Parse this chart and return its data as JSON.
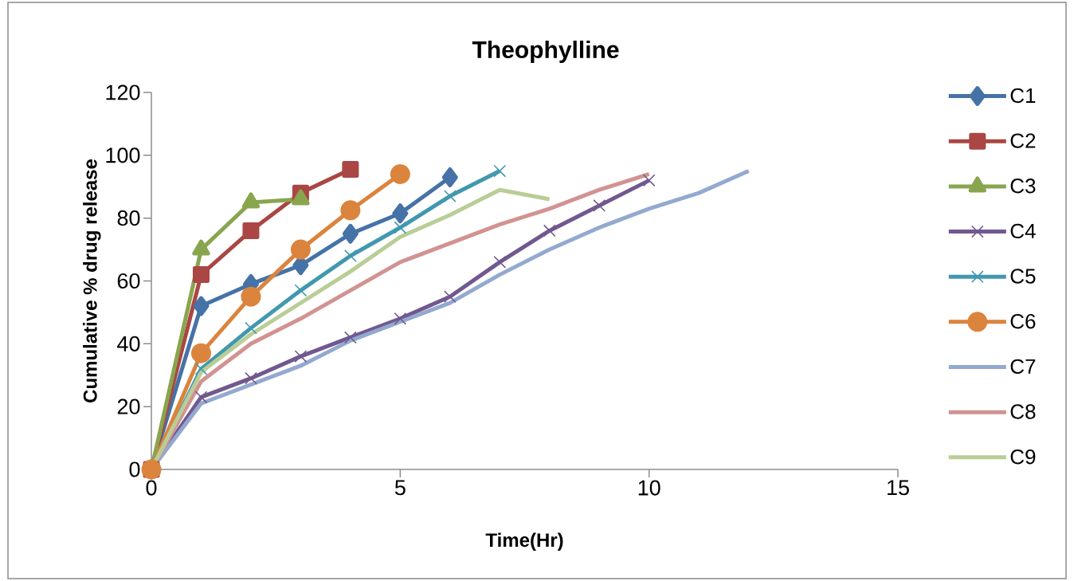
{
  "chart_data": {
    "type": "line",
    "title": "Theophylline",
    "xlabel": "Time(Hr)",
    "ylabel": "Cumulative % drug release",
    "xlim": [
      0,
      15
    ],
    "xticks": [
      0,
      5,
      10,
      15
    ],
    "ylim": [
      0,
      120
    ],
    "yticks": [
      0,
      20,
      40,
      60,
      80,
      100,
      120
    ],
    "grid": false,
    "legend": "right",
    "line_style": "solid",
    "series": [
      {
        "name": "C1",
        "color": "#4572a7",
        "marker": "diamond",
        "x": [
          0,
          1,
          2,
          3,
          4,
          5,
          6
        ],
        "values": [
          0,
          52,
          59,
          65,
          75,
          81.5,
          93
        ]
      },
      {
        "name": "C2",
        "color": "#aa4643",
        "marker": "square",
        "x": [
          0,
          1,
          2,
          3,
          4
        ],
        "values": [
          0,
          62,
          76,
          88,
          95.5
        ]
      },
      {
        "name": "C3",
        "color": "#89a54e",
        "marker": "triangle",
        "x": [
          0,
          1,
          2,
          3
        ],
        "values": [
          0,
          70,
          85,
          86
        ]
      },
      {
        "name": "C4",
        "color": "#71588f",
        "marker": "cross",
        "x": [
          0,
          1,
          2,
          3,
          4,
          5,
          6,
          7,
          8,
          9,
          10
        ],
        "values": [
          0,
          23,
          29,
          36,
          42,
          48,
          55,
          66,
          76,
          84,
          92
        ]
      },
      {
        "name": "C5",
        "color": "#4198af",
        "marker": "cross",
        "x": [
          0,
          1,
          2,
          3,
          4,
          5,
          6,
          7
        ],
        "values": [
          0,
          32,
          45,
          57,
          68,
          77,
          87,
          95
        ]
      },
      {
        "name": "C6",
        "color": "#db843d",
        "marker": "circle",
        "x": [
          0,
          1,
          2,
          3,
          4,
          5
        ],
        "values": [
          0,
          37,
          55,
          70,
          82.5,
          94
        ]
      },
      {
        "name": "C7",
        "color": "#93a9cf",
        "marker": "none",
        "x": [
          0,
          1,
          2,
          3,
          4,
          5,
          6,
          7,
          8,
          9,
          10,
          11,
          12
        ],
        "values": [
          0,
          21,
          27,
          33,
          41,
          47,
          53,
          62,
          70,
          77,
          83,
          88,
          95
        ]
      },
      {
        "name": "C8",
        "color": "#d19392",
        "marker": "none",
        "x": [
          0,
          1,
          2,
          3,
          4,
          5,
          6,
          7,
          8,
          9,
          10
        ],
        "values": [
          0,
          28,
          40,
          48,
          57,
          66,
          72,
          78,
          83,
          89,
          94
        ]
      },
      {
        "name": "C9",
        "color": "#b9cd96",
        "marker": "none",
        "x": [
          0,
          1,
          2,
          3,
          4,
          5,
          6,
          7,
          8
        ],
        "values": [
          0,
          31,
          43,
          53,
          63,
          74,
          81,
          89,
          86
        ]
      }
    ]
  }
}
